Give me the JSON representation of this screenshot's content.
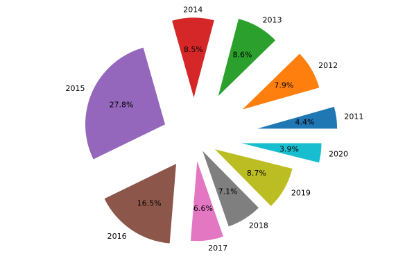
{
  "chart_data": {
    "type": "pie",
    "title": "",
    "start_angle_deg": 0,
    "direction": "counterclockwise",
    "pct_format": "%.1f%%",
    "slices": [
      {
        "label": "2011",
        "value": 4.4,
        "pct_label": "4.4%",
        "explode": 0.8,
        "color": "#1f77b4"
      },
      {
        "label": "2012",
        "value": 7.9,
        "pct_label": "7.9%",
        "explode": 0.7,
        "color": "#ff7f0e"
      },
      {
        "label": "2013",
        "value": 8.6,
        "pct_label": "8.6%",
        "explode": 0.6,
        "color": "#2ca02c"
      },
      {
        "label": "2014",
        "value": 8.5,
        "pct_label": "8.5%",
        "explode": 0.5,
        "color": "#d62728"
      },
      {
        "label": "2015",
        "value": 27.8,
        "pct_label": "27.8%",
        "explode": 0.4,
        "color": "#9467bd"
      },
      {
        "label": "2016",
        "value": 16.5,
        "pct_label": "16.5%",
        "explode": 0.4,
        "color": "#8c564b"
      },
      {
        "label": "2017",
        "value": 6.6,
        "pct_label": "6.6%",
        "explode": 0.3,
        "color": "#e377c2"
      },
      {
        "label": "2018",
        "value": 7.1,
        "pct_label": "7.1%",
        "explode": 0.2,
        "color": "#7f7f7f"
      },
      {
        "label": "2019",
        "value": 8.7,
        "pct_label": "8.7%",
        "explode": 0.3,
        "color": "#bcbd22"
      },
      {
        "label": "2020",
        "value": 3.9,
        "pct_label": "3.9%",
        "explode": 0.6,
        "color": "#17becf"
      }
    ]
  }
}
